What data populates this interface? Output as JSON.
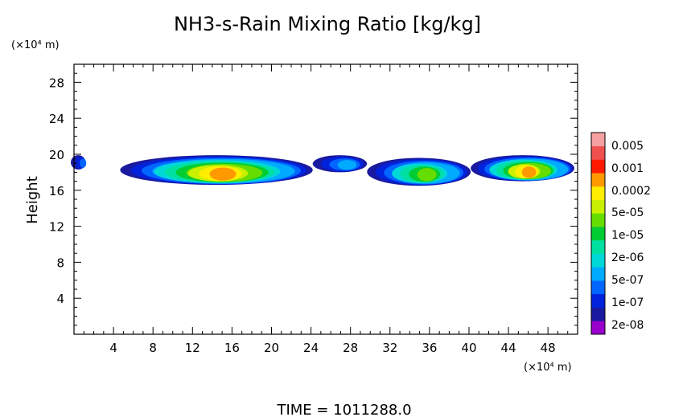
{
  "chart_data": {
    "type": "heatmap",
    "title": "NH3-s-Rain Mixing Ratio [kg/kg]",
    "xlabel": "",
    "ylabel": "Height",
    "x_unit": "(×10⁴ m)",
    "y_unit": "(×10⁴ m)",
    "xlim": [
      0,
      51
    ],
    "ylim": [
      0,
      30
    ],
    "x_ticks": [
      4,
      8,
      12,
      16,
      20,
      24,
      28,
      32,
      36,
      40,
      44,
      48
    ],
    "y_ticks": [
      4,
      8,
      12,
      16,
      20,
      24,
      28
    ],
    "colorbar": {
      "labels": [
        "0.005",
        "0.001",
        "0.0002",
        "5e-05",
        "1e-05",
        "2e-06",
        "5e-07",
        "1e-07",
        "2e-08"
      ],
      "colors": [
        "#f5a0a0",
        "#f05050",
        "#ff1a00",
        "#ff9900",
        "#ffee00",
        "#c8f000",
        "#66dd00",
        "#00cc33",
        "#00e0a0",
        "#00d8d8",
        "#00aaff",
        "#0066ff",
        "#0022dd",
        "#1a1aa0",
        "#9900cc"
      ]
    },
    "regions": [
      {
        "x": [
          0.0,
          1.5
        ],
        "y": [
          18.3,
          19.9
        ],
        "max_level": "2e-08"
      },
      {
        "x": [
          5.0,
          24.5
        ],
        "y": [
          16.6,
          19.9
        ],
        "max_level": "0.0002"
      },
      {
        "x": [
          24.5,
          30.0
        ],
        "y": [
          18.0,
          19.9
        ],
        "max_level": "5e-07"
      },
      {
        "x": [
          30.0,
          40.5
        ],
        "y": [
          16.5,
          19.6
        ],
        "max_level": "1e-05"
      },
      {
        "x": [
          40.5,
          51.0
        ],
        "y": [
          17.0,
          19.9
        ],
        "max_level": "0.0002"
      }
    ],
    "annotation": "TIME = 1011288.0"
  }
}
